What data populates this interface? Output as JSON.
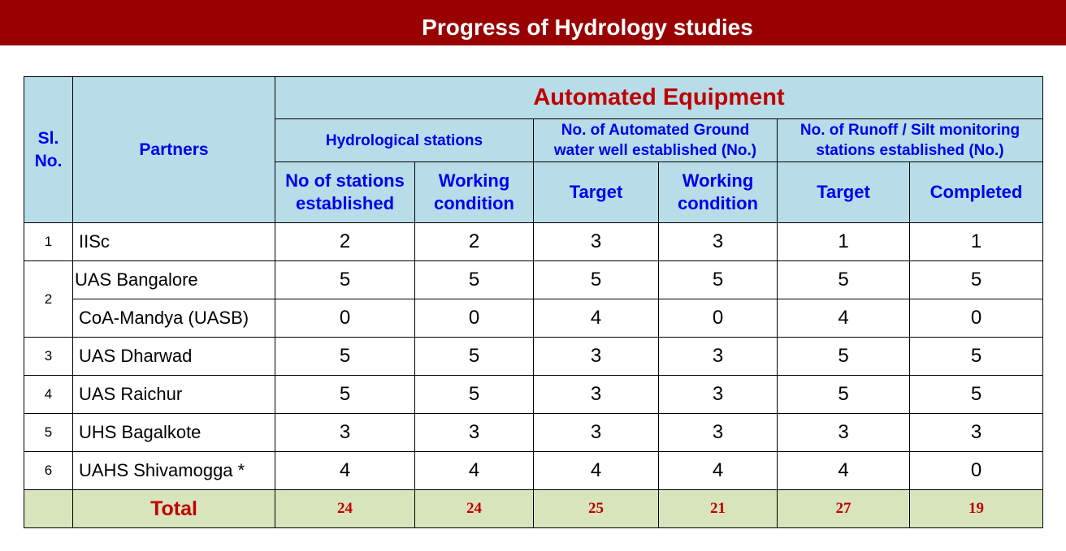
{
  "title": "Progress of Hydrology studies",
  "table": {
    "header": {
      "sl_no": "Sl. No.",
      "partners": "Partners",
      "group_title": "Automated Equipment",
      "subgroups": [
        "Hydrological stations",
        "No. of Automated Ground water well established (No.)",
        "No. of  Runoff / Silt monitoring stations established (No.)"
      ],
      "columns": [
        "No of stations established",
        "Working condition",
        "Target",
        "Working condition",
        "Target",
        "Completed"
      ]
    },
    "rows": [
      {
        "sl": "1",
        "partner": "IISc",
        "values": [
          "2",
          "2",
          "3",
          "3",
          "1",
          "1"
        ]
      },
      {
        "sl": "2",
        "partner": "UAS Bangalore",
        "values": [
          "5",
          "5",
          "5",
          "5",
          "5",
          "5"
        ]
      },
      {
        "sl": "",
        "partner": "CoA-Mandya (UASB)",
        "values": [
          "0",
          "0",
          "4",
          "0",
          "4",
          "0"
        ]
      },
      {
        "sl": "3",
        "partner": "UAS Dharwad",
        "values": [
          "5",
          "5",
          "3",
          "3",
          "5",
          "5"
        ]
      },
      {
        "sl": "4",
        "partner": "UAS Raichur",
        "values": [
          "5",
          "5",
          "3",
          "3",
          "5",
          "5"
        ]
      },
      {
        "sl": "5",
        "partner": "UHS Bagalkote",
        "values": [
          "3",
          "3",
          "3",
          "3",
          "3",
          "3"
        ]
      },
      {
        "sl": "6",
        "partner": "UAHS Shivamogga *",
        "values": [
          "4",
          "4",
          "4",
          "4",
          "4",
          "0"
        ]
      }
    ],
    "total": {
      "label": "Total",
      "values": [
        "24",
        "24",
        "25",
        "21",
        "27",
        "19"
      ]
    }
  },
  "colors": {
    "title_bar": "#990000",
    "header_bg": "#b7dde8",
    "header_text": "#0000ee",
    "accent_red": "#c00000",
    "total_bg": "#d8e4bc"
  }
}
